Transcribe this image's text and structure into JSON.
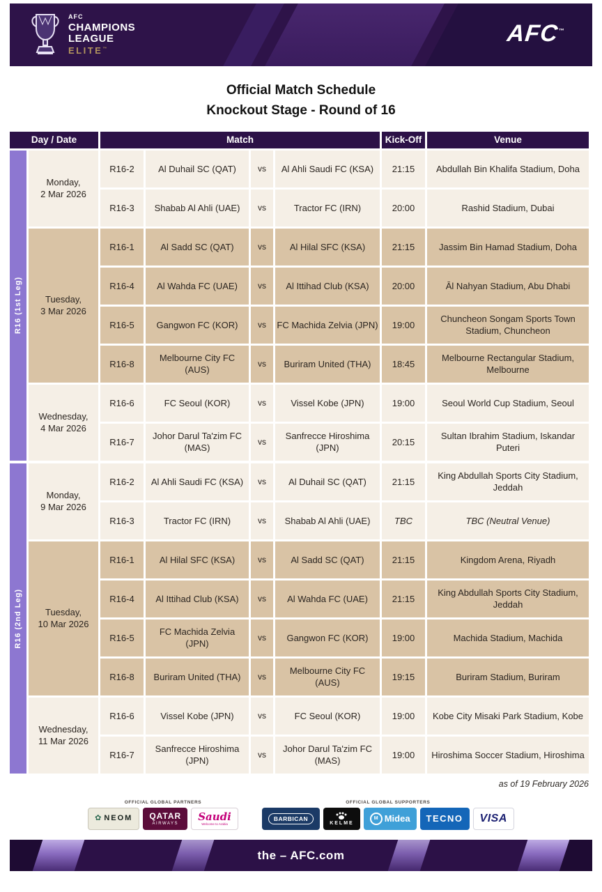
{
  "header": {
    "logo": {
      "org_small": "AFC",
      "line1": "CHAMPIONS",
      "line2": "LEAGUE",
      "tier": "ELITE",
      "tm": "™"
    },
    "afc_wordmark": "AFC"
  },
  "title": {
    "line1": "Official Match Schedule",
    "line2": "Knockout Stage - Round of 16"
  },
  "table": {
    "columns": {
      "day_date": "Day / Date",
      "match": "Match",
      "kickoff": "Kick-Off",
      "venue": "Venue"
    },
    "vs_label": "vs",
    "legs": [
      {
        "label": "R16 (1st Leg)",
        "groups": [
          {
            "day": "Monday,",
            "date": "2 Mar 2026",
            "shade": "cream",
            "matches": [
              {
                "no": "R16-2",
                "home": "Al Duhail SC (QAT)",
                "away": "Al Ahli Saudi FC (KSA)",
                "kickoff": "21:15",
                "venue": "Abdullah Bin Khalifa Stadium, Doha"
              },
              {
                "no": "R16-3",
                "home": "Shabab Al Ahli (UAE)",
                "away": "Tractor FC (IRN)",
                "kickoff": "20:00",
                "venue": "Rashid Stadium, Dubai"
              }
            ]
          },
          {
            "day": "Tuesday,",
            "date": "3 Mar 2026",
            "shade": "tan",
            "matches": [
              {
                "no": "R16-1",
                "home": "Al Sadd SC (QAT)",
                "away": "Al Hilal SFC (KSA)",
                "kickoff": "21:15",
                "venue": "Jassim Bin Hamad Stadium, Doha"
              },
              {
                "no": "R16-4",
                "home": "Al Wahda FC (UAE)",
                "away": "Al Ittihad Club (KSA)",
                "kickoff": "20:00",
                "venue": "Āl Nahyan Stadium, Abu Dhabi"
              },
              {
                "no": "R16-5",
                "home": "Gangwon FC (KOR)",
                "away": "FC Machida Zelvia (JPN)",
                "kickoff": "19:00",
                "venue": "Chuncheon Songam Sports Town Stadium, Chuncheon"
              },
              {
                "no": "R16-8",
                "home": "Melbourne City FC (AUS)",
                "away": "Buriram United (THA)",
                "kickoff": "18:45",
                "venue": "Melbourne Rectangular Stadium, Melbourne"
              }
            ]
          },
          {
            "day": "Wednesday,",
            "date": "4 Mar 2026",
            "shade": "cream",
            "matches": [
              {
                "no": "R16-6",
                "home": "FC Seoul (KOR)",
                "away": "Vissel Kobe (JPN)",
                "kickoff": "19:00",
                "venue": "Seoul World Cup Stadium, Seoul"
              },
              {
                "no": "R16-7",
                "home": "Johor Darul Ta'zim FC (MAS)",
                "away": "Sanfrecce Hiroshima (JPN)",
                "kickoff": "20:15",
                "venue": "Sultan Ibrahim Stadium, Iskandar Puteri"
              }
            ]
          }
        ]
      },
      {
        "label": "R16 (2nd Leg)",
        "groups": [
          {
            "day": "Monday,",
            "date": "9 Mar 2026",
            "shade": "cream",
            "matches": [
              {
                "no": "R16-2",
                "home": "Al Ahli Saudi FC (KSA)",
                "away": "Al Duhail SC (QAT)",
                "kickoff": "21:15",
                "venue": "King Abdullah Sports City Stadium, Jeddah"
              },
              {
                "no": "R16-3",
                "home": "Tractor FC (IRN)",
                "away": "Shabab Al Ahli (UAE)",
                "kickoff": "TBC",
                "venue": "TBC (Neutral Venue)",
                "tbc": true
              }
            ]
          },
          {
            "day": "Tuesday,",
            "date": "10 Mar 2026",
            "shade": "tan",
            "matches": [
              {
                "no": "R16-1",
                "home": "Al Hilal SFC (KSA)",
                "away": "Al Sadd SC (QAT)",
                "kickoff": "21:15",
                "venue": "Kingdom Arena, Riyadh"
              },
              {
                "no": "R16-4",
                "home": "Al Ittihad Club (KSA)",
                "away": "Al Wahda FC (UAE)",
                "kickoff": "21:15",
                "venue": "King Abdullah Sports City Stadium, Jeddah"
              },
              {
                "no": "R16-5",
                "home": "FC Machida Zelvia (JPN)",
                "away": "Gangwon FC (KOR)",
                "kickoff": "19:00",
                "venue": "Machida Stadium, Machida"
              },
              {
                "no": "R16-8",
                "home": "Buriram United (THA)",
                "away": "Melbourne City FC (AUS)",
                "kickoff": "19:15",
                "venue": "Buriram Stadium, Buriram"
              }
            ]
          },
          {
            "day": "Wednesday,",
            "date": "11 Mar 2026",
            "shade": "cream",
            "matches": [
              {
                "no": "R16-6",
                "home": "Vissel Kobe (JPN)",
                "away": "FC Seoul (KOR)",
                "kickoff": "19:00",
                "venue": "Kobe City Misaki Park Stadium, Kobe"
              },
              {
                "no": "R16-7",
                "home": "Sanfrecce Hiroshima (JPN)",
                "away": "Johor Darul Ta'zim FC (MAS)",
                "kickoff": "19:00",
                "venue": "Hiroshima Soccer Stadium, Hiroshima"
              }
            ]
          }
        ]
      }
    ]
  },
  "footnote": "as of 19 February 2026",
  "sponsors": {
    "partners_label": "OFFICIAL GLOBAL PARTNERS",
    "supporters_label": "OFFICIAL GLOBAL SUPPORTERS",
    "neom": "NEOM",
    "qatar_line1": "QATAR",
    "qatar_line2": "AIRWAYS",
    "saudi": "Saudi",
    "saudi_sub": "Welcome to Arabia",
    "barbican": "BARBICAN",
    "kelme": "KELME",
    "midea_m": "M",
    "midea": "Midea",
    "tecno": "TECNO",
    "visa": "VISA"
  },
  "footer": {
    "url": "the – AFC.com"
  },
  "colors": {
    "banner_purple": "#2e1349",
    "header_purple": "#2c1147",
    "leg_bar_purple": "#8d77d1",
    "row_cream": "#f5efe6",
    "row_tan": "#d9c3a5",
    "elite_gold": "#b3955e"
  }
}
